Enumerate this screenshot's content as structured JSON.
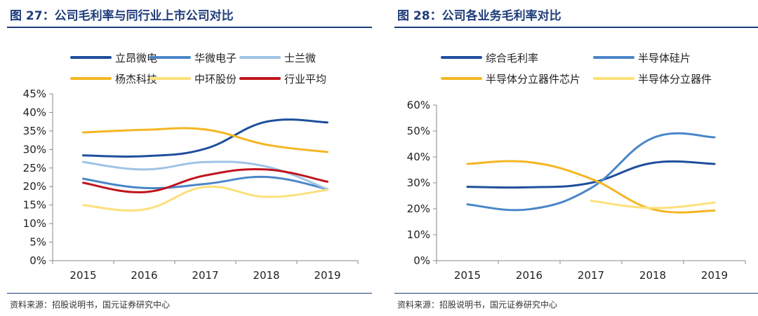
{
  "figures": [
    {
      "title": "图 27：公司毛利率与同行业上市公司对比",
      "source": "资料来源：招股说明书，国元证券研究中心"
    },
    {
      "title": "图 28：公司各业务毛利率对比",
      "source": "资料来源：招股说明书，国元证券研究中心"
    }
  ],
  "chart_data": [
    {
      "type": "line",
      "title": "",
      "xlabel": "",
      "ylabel": "",
      "x": [
        "2015",
        "2016",
        "2017",
        "2018",
        "2019"
      ],
      "ylim": [
        0,
        45
      ],
      "yticks": [
        "0%",
        "5%",
        "10%",
        "15%",
        "20%",
        "25%",
        "30%",
        "35%",
        "40%",
        "45%"
      ],
      "grid": false,
      "legend": "top",
      "legend_columns": 3,
      "smooth": true,
      "series": [
        {
          "name": "立昂微电",
          "color": "#1f4e9c",
          "values": [
            28.4,
            28.2,
            30.2,
            37.5,
            37.3
          ]
        },
        {
          "name": "华微电子",
          "color": "#4a86c8",
          "values": [
            22.1,
            19.6,
            20.7,
            22.6,
            19.3
          ]
        },
        {
          "name": "士兰微",
          "color": "#9fc3e6",
          "values": [
            26.6,
            24.6,
            26.6,
            25.4,
            19.3
          ]
        },
        {
          "name": "杨杰科技",
          "color": "#f5b622",
          "values": [
            34.6,
            35.3,
            35.4,
            31.3,
            29.3
          ]
        },
        {
          "name": "中环股份",
          "color": "#fde07a",
          "values": [
            15.0,
            13.8,
            19.9,
            17.2,
            19.1
          ]
        },
        {
          "name": "行业平均",
          "color": "#c0141c",
          "values": [
            21.0,
            18.5,
            23.0,
            24.6,
            21.3
          ]
        }
      ]
    },
    {
      "type": "line",
      "title": "",
      "xlabel": "",
      "ylabel": "",
      "x": [
        "2015",
        "2016",
        "2017",
        "2018",
        "2019"
      ],
      "ylim": [
        0,
        60
      ],
      "yticks": [
        "0%",
        "10%",
        "20%",
        "30%",
        "40%",
        "50%",
        "60%"
      ],
      "grid": false,
      "legend": "top",
      "legend_columns": 2,
      "smooth": true,
      "series": [
        {
          "name": "综合毛利率",
          "color": "#1f4e9c",
          "values": [
            28.5,
            28.3,
            30.0,
            37.7,
            37.3
          ]
        },
        {
          "name": "半导体硅片",
          "color": "#4a86c8",
          "values": [
            21.7,
            19.8,
            28.0,
            47.3,
            47.6
          ]
        },
        {
          "name": "半导体分立器件芯片",
          "color": "#f5b622",
          "values": [
            37.3,
            38.0,
            31.6,
            19.8,
            19.3
          ]
        },
        {
          "name": "半导体分立器件",
          "color": "#fde07a",
          "values": [
            null,
            null,
            23.1,
            20.3,
            22.4
          ]
        }
      ]
    }
  ]
}
